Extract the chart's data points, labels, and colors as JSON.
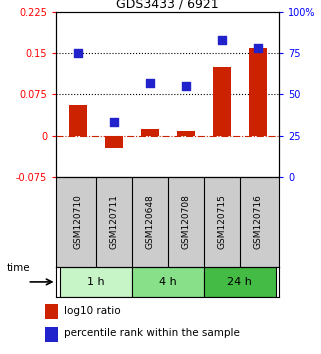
{
  "title": "GDS3433 / 6921",
  "samples": [
    "GSM120710",
    "GSM120711",
    "GSM120648",
    "GSM120708",
    "GSM120715",
    "GSM120716"
  ],
  "log10_ratio": [
    0.055,
    -0.022,
    0.012,
    0.008,
    0.125,
    0.16
  ],
  "percentile_rank": [
    75,
    33,
    57,
    55,
    83,
    78
  ],
  "time_groups": [
    {
      "label": "1 h",
      "start": 0,
      "end": 2,
      "color": "#c8f5c8"
    },
    {
      "label": "4 h",
      "start": 2,
      "end": 4,
      "color": "#88e088"
    },
    {
      "label": "24 h",
      "start": 4,
      "end": 6,
      "color": "#44bb44"
    }
  ],
  "ylim_left": [
    -0.075,
    0.225
  ],
  "ylim_right": [
    0,
    100
  ],
  "yticks_left": [
    -0.075,
    0,
    0.075,
    0.15,
    0.225
  ],
  "ytick_labels_left": [
    "-0.075",
    "0",
    "0.075",
    "0.15",
    "0.225"
  ],
  "yticks_right": [
    0,
    25,
    50,
    75,
    100
  ],
  "ytick_labels_right": [
    "0",
    "25",
    "50",
    "75",
    "100%"
  ],
  "hlines": [
    0.075,
    0.15
  ],
  "bar_color": "#cc2200",
  "dot_color": "#2222cc",
  "zero_line_color": "#cc2200",
  "bar_width": 0.5,
  "dot_size": 40,
  "sample_bg_color": "#cccccc",
  "legend_bar_label": "log10 ratio",
  "legend_dot_label": "percentile rank within the sample"
}
